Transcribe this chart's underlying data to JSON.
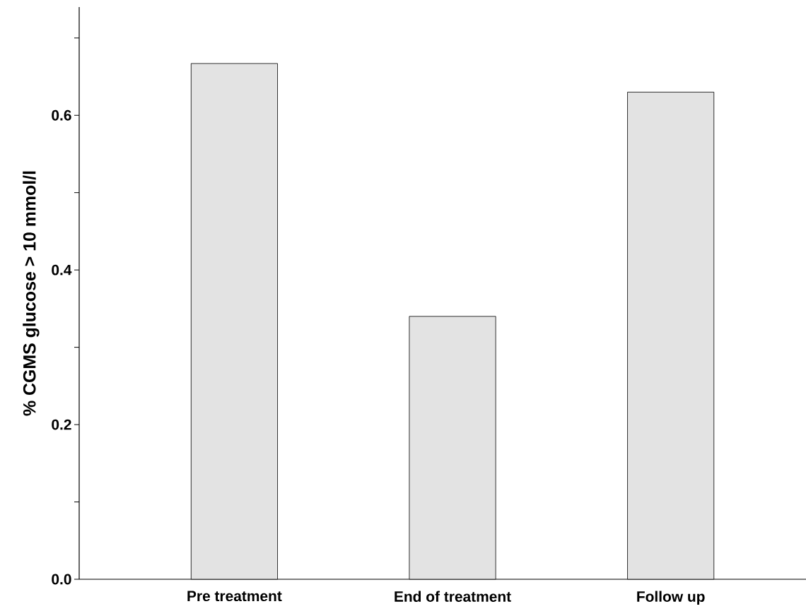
{
  "chart_data": {
    "type": "bar",
    "ylabel": "% CGMS glucose > 10 mmol/l",
    "categories": [
      "Pre treatment",
      "End of treatment",
      "Follow up"
    ],
    "values": [
      0.667,
      0.34,
      0.63
    ],
    "color": "#e3e3e3",
    "ylim": [
      0,
      0.74
    ],
    "yticks": [
      {
        "value": 0,
        "label": "0.0"
      },
      {
        "value": 0.1,
        "label": null
      },
      0.2,
      {
        "value": 0.3,
        "label": null
      },
      0.4,
      {
        "value": 0.5,
        "label": null
      },
      0.6,
      {
        "value": 0.7,
        "label": null
      }
    ],
    "grid": false
  }
}
